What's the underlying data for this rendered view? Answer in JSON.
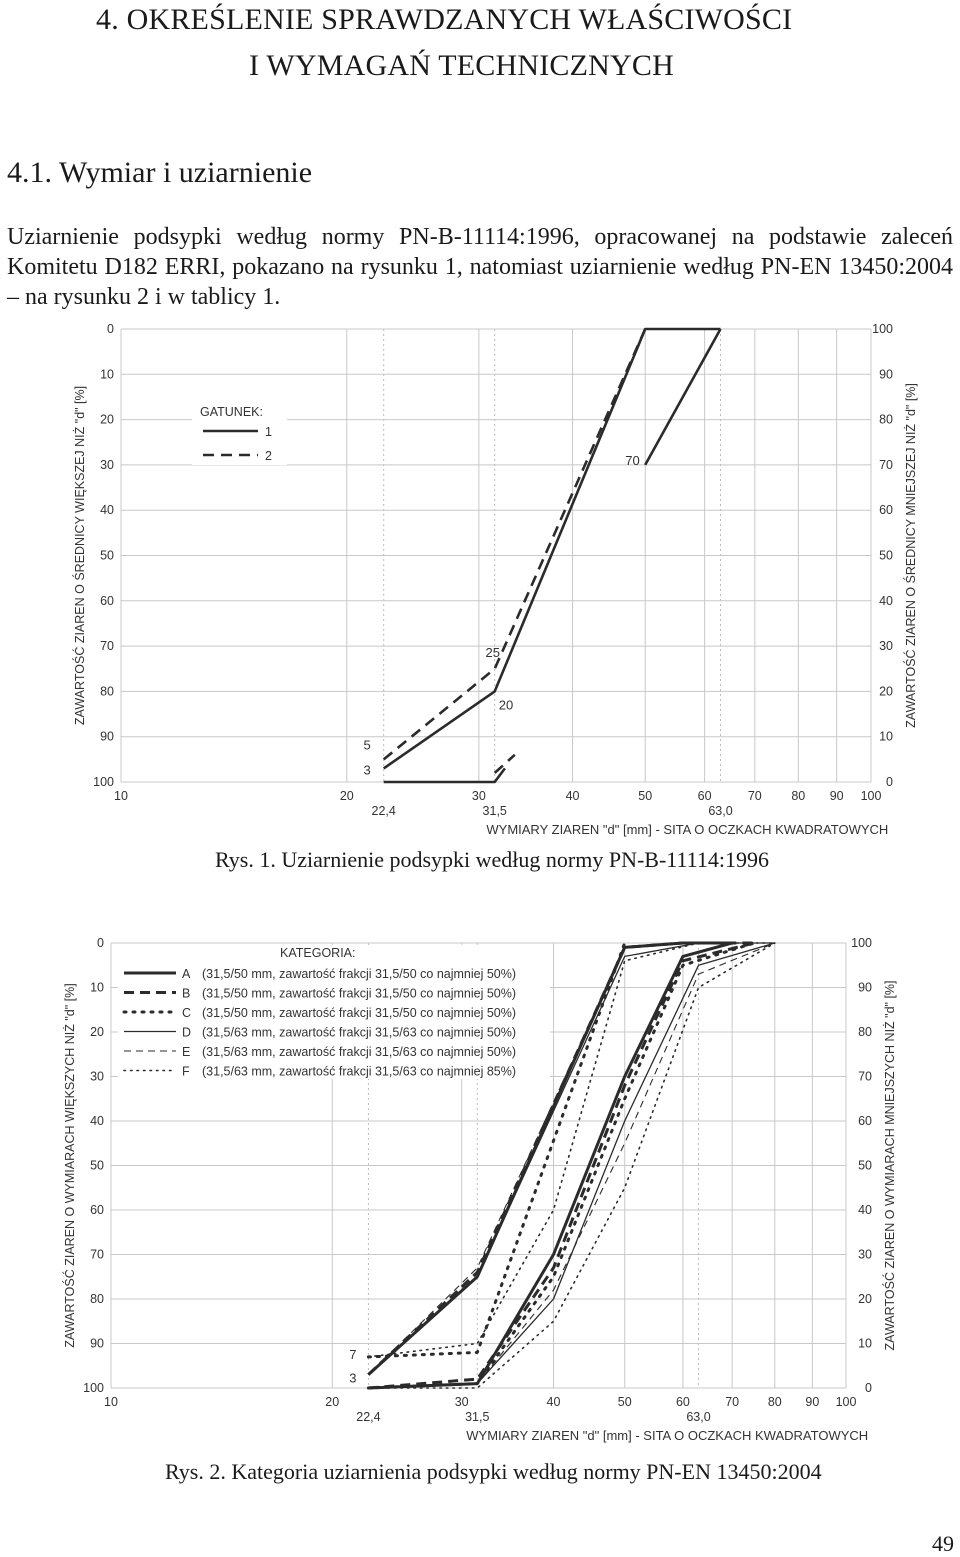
{
  "heading": {
    "line1": "4.  OKREŚLENIE SPRAWDZANYCH WŁAŚCIWOŚCI",
    "line2": "I WYMAGAŃ TECHNICZNYCH"
  },
  "section_title": "4.1. Wymiar i uziarnienie",
  "paragraph": "Uziarnienie podsypki według normy PN-B-11114:1996, opracowanej na podstawie zaleceń Komitetu D182 ERRI, pokazano na rysunku 1, natomiast uziarnienie według PN-EN 13450:2004 – na rysunku 2 i w tablicy 1.",
  "figure1_caption": "Rys. 1. Uziarnienie podsypki według normy PN-B-11114:1996",
  "figure2_caption": "Rys. 2. Kategoria uziarnienia podsypki  według normy PN-EN 13450:2004",
  "page_number": "49",
  "chart_data": [
    {
      "type": "line",
      "xscale": "log",
      "xlim": [
        10,
        100
      ],
      "ylim": [
        0,
        100
      ],
      "grid": true,
      "x_ticks": [
        "10",
        "20",
        "30",
        "40",
        "50",
        "60",
        "70",
        "80",
        "90",
        "100"
      ],
      "x_special_ticks": [
        "22,4",
        "31,5",
        "63,0"
      ],
      "y_left_ticks": [
        "0",
        "10",
        "20",
        "30",
        "40",
        "50",
        "60",
        "70",
        "80",
        "90",
        "100"
      ],
      "y_right_ticks": [
        "100",
        "90",
        "80",
        "70",
        "60",
        "50",
        "40",
        "30",
        "20",
        "10",
        "0"
      ],
      "xlabel": "WYMIARY ZIAREN \"d\" [mm] - SITA O OCZKACH KWADRATOWYCH",
      "ylabel_left": "ZAWARTOŚĆ ZIAREN O ŚREDNICY WIĘKSZEJ NIŻ \"d\" [%]",
      "ylabel_right": "ZAWARTOŚĆ ZIAREN O ŚREDNICY MNIEJSZEJ NIŻ \"d\" [%]",
      "legend_title": "GATUNEK:",
      "legend_position": "top-left",
      "series": [
        {
          "name": "1",
          "style": "solid",
          "segments": [
            [
              [
                22.4,
                3
              ],
              [
                31.5,
                20
              ],
              [
                50,
                100
              ],
              [
                63,
                100
              ]
            ],
            [
              [
                22.4,
                0
              ],
              [
                31.5,
                0
              ],
              [
                32.5,
                3
              ]
            ],
            [
              [
                50,
                70
              ],
              [
                63,
                100
              ]
            ]
          ]
        },
        {
          "name": "2",
          "style": "dashed",
          "segments": [
            [
              [
                22.4,
                5
              ],
              [
                31.5,
                25
              ],
              [
                50,
                100
              ]
            ],
            [
              [
                31.5,
                2
              ],
              [
                33.5,
                6
              ]
            ]
          ]
        }
      ],
      "annotations": [
        {
          "text": "5",
          "x": 22.4,
          "y": 5
        },
        {
          "text": "3",
          "x": 22.4,
          "y": 3
        },
        {
          "text": "25",
          "x": 31.5,
          "y": 25
        },
        {
          "text": "20",
          "x": 31.5,
          "y": 20
        },
        {
          "text": "70",
          "x": 50,
          "y": 70
        }
      ]
    },
    {
      "type": "line",
      "xscale": "log",
      "xlim": [
        10,
        100
      ],
      "ylim": [
        0,
        100
      ],
      "grid": true,
      "x_ticks": [
        "10",
        "20",
        "30",
        "40",
        "50",
        "60",
        "70",
        "80",
        "90",
        "100"
      ],
      "x_special_ticks": [
        "22,4",
        "31,5",
        "63,0"
      ],
      "y_left_ticks": [
        "0",
        "10",
        "20",
        "30",
        "40",
        "50",
        "60",
        "70",
        "80",
        "90",
        "100"
      ],
      "y_right_ticks": [
        "100",
        "90",
        "80",
        "70",
        "60",
        "50",
        "40",
        "30",
        "20",
        "10",
        "0"
      ],
      "xlabel": "WYMIARY ZIAREN \"d\" [mm] - SITA O OCZKACH KWADRATOWYCH",
      "ylabel_left": "ZAWARTOŚĆ ZIAREN O WYMIARACH WIĘKSZYCH NIŻ \"d\" [%]",
      "ylabel_right": "ZAWARTOŚĆ ZIAREN O WYMIARACH MNIEJSZYCH NIŻ \"d\" [%]",
      "legend_title": "KATEGORIA:",
      "legend_position": "top-left",
      "series": [
        {
          "name": "A",
          "desc": "(31,5/50 mm, zawartość frakcji 31,5/50 co najmniej 50%)",
          "style": "solid-thick",
          "segments": [
            [
              [
                22.4,
                3
              ],
              [
                31.5,
                25
              ],
              [
                50,
                99
              ],
              [
                60,
                100
              ],
              [
                70,
                100
              ]
            ],
            [
              [
                22.4,
                0
              ],
              [
                31.5,
                1
              ],
              [
                40,
                30
              ],
              [
                50,
                70
              ],
              [
                60,
                97
              ],
              [
                70,
                100
              ]
            ]
          ]
        },
        {
          "name": "B",
          "desc": "(31,5/50 mm, zawartość frakcji 31,5/50 co najmniej 50%)",
          "style": "dashed-thick",
          "segments": [
            [
              [
                22.4,
                3
              ],
              [
                31.5,
                26
              ],
              [
                50,
                99
              ],
              [
                60,
                100
              ],
              [
                75,
                100
              ]
            ],
            [
              [
                22.4,
                0
              ],
              [
                31.5,
                2
              ],
              [
                40,
                27
              ],
              [
                50,
                68
              ],
              [
                60,
                96
              ],
              [
                75,
                100
              ]
            ]
          ]
        },
        {
          "name": "C",
          "desc": "(31,5/50 mm, zawartość frakcji 31,5/50 co najmniej 50%)",
          "style": "dotted-thick",
          "segments": [
            [
              [
                22.4,
                7
              ],
              [
                31.5,
                8
              ],
              [
                50,
                100
              ]
            ],
            [
              [
                22.4,
                0
              ],
              [
                31.5,
                1
              ],
              [
                40,
                25
              ],
              [
                50,
                65
              ],
              [
                60,
                95
              ],
              [
                75,
                100
              ]
            ]
          ]
        },
        {
          "name": "D",
          "desc": "(31,5/63 mm, zawartość frakcji 31,5/63 co najmniej 50%)",
          "style": "solid-thin",
          "segments": [
            [
              [
                22.4,
                3
              ],
              [
                31.5,
                25
              ],
              [
                50,
                97
              ],
              [
                63,
                100
              ],
              [
                80,
                100
              ]
            ],
            [
              [
                22.4,
                0
              ],
              [
                31.5,
                1
              ],
              [
                40,
                20
              ],
              [
                50,
                60
              ],
              [
                63,
                95
              ],
              [
                80,
                100
              ]
            ]
          ]
        },
        {
          "name": "E",
          "desc": "(31,5/63 mm, zawartość frakcji 31,5/63 co najmniej 50%)",
          "style": "dashed-thin",
          "segments": [
            [
              [
                22.4,
                3
              ],
              [
                31.5,
                27
              ],
              [
                50,
                99
              ],
              [
                63,
                100
              ],
              [
                80,
                100
              ]
            ],
            [
              [
                22.4,
                0
              ],
              [
                31.5,
                1
              ],
              [
                40,
                22
              ],
              [
                50,
                55
              ],
              [
                63,
                93
              ],
              [
                80,
                100
              ]
            ]
          ]
        },
        {
          "name": "F",
          "desc": "(31,5/63 mm, zawartość frakcji 31,5/63 co najmniej 85%)",
          "style": "dotted-thin",
          "segments": [
            [
              [
                22.4,
                7
              ],
              [
                31.5,
                10
              ],
              [
                40,
                40
              ],
              [
                50,
                96
              ],
              [
                63,
                100
              ],
              [
                80,
                100
              ]
            ],
            [
              [
                22.4,
                0
              ],
              [
                31.5,
                0
              ],
              [
                40,
                15
              ],
              [
                50,
                45
              ],
              [
                63,
                90
              ],
              [
                80,
                100
              ]
            ]
          ]
        }
      ],
      "annotations": [
        {
          "text": "7",
          "x": 22.4,
          "y": 7
        },
        {
          "text": "3",
          "x": 22.4,
          "y": 3
        }
      ]
    }
  ]
}
